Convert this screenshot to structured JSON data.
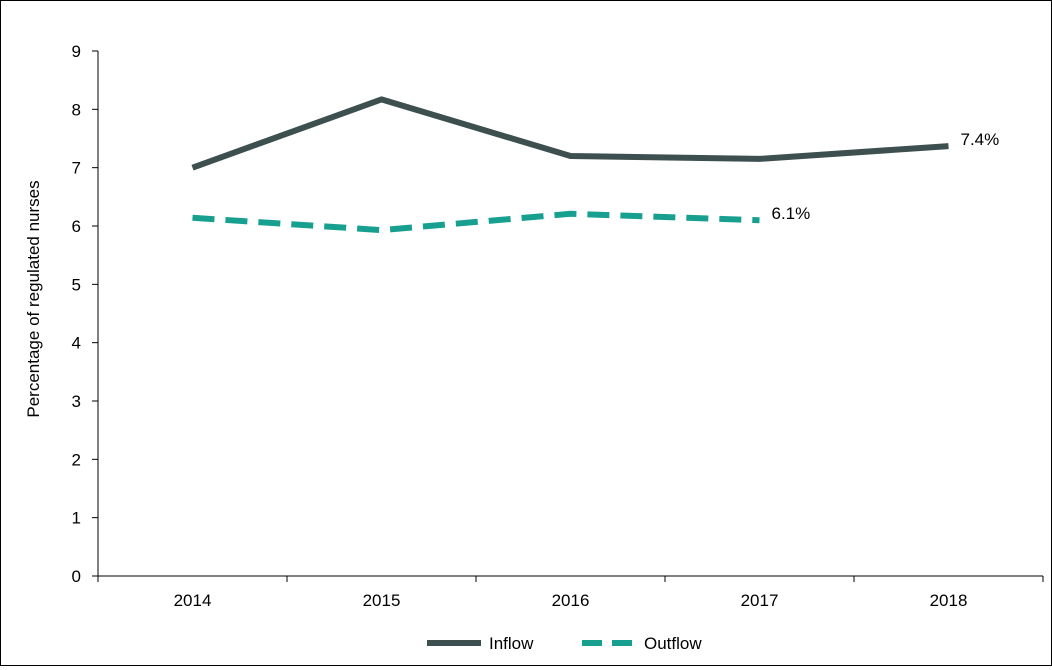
{
  "chart_data": {
    "type": "line",
    "categories": [
      "2014",
      "2015",
      "2016",
      "2017",
      "2018"
    ],
    "series": [
      {
        "name": "Inflow",
        "values": [
          7.0,
          8.17,
          7.2,
          7.15,
          7.37
        ],
        "color": "#3d4f4f",
        "style": "solid",
        "end_label": "7.4%"
      },
      {
        "name": "Outflow",
        "values": [
          6.14,
          5.93,
          6.21,
          6.1,
          null
        ],
        "color": "#17a090",
        "style": "dashed",
        "end_label": "6.1%"
      }
    ],
    "ylabel": "Percentage of regulated nurses",
    "ylim": [
      0,
      9
    ],
    "yticks": [
      "0",
      "1",
      "2",
      "3",
      "4",
      "5",
      "6",
      "7",
      "8",
      "9"
    ],
    "grid": false,
    "legend": "bottom-center"
  }
}
